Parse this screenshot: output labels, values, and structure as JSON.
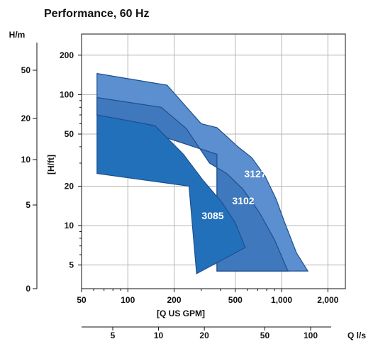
{
  "chart_data": {
    "type": "area",
    "title": "Performance, 60 Hz",
    "x_axis": {
      "label": "[Q US GPM]",
      "scale": "log",
      "range": [
        50,
        2600
      ],
      "tick_labels": [
        "50",
        "100",
        "200",
        "500",
        "1,000",
        "2,000"
      ],
      "tick_values": [
        50,
        100,
        200,
        500,
        1000,
        2000
      ]
    },
    "x2_axis": {
      "label": "Q l/s",
      "scale": "log",
      "tick_labels": [
        "5",
        "10",
        "20",
        "50",
        "100"
      ],
      "tick_values": [
        5,
        10,
        20,
        50,
        100
      ]
    },
    "y_axis": {
      "label": "[H/ft]",
      "scale": "log",
      "range": [
        3.3,
        290
      ],
      "tick_labels": [
        "5",
        "10",
        "20",
        "50",
        "100",
        "200"
      ],
      "tick_values": [
        5,
        10,
        20,
        50,
        100,
        200
      ]
    },
    "y2_axis": {
      "label": "H/m",
      "tick_labels": [
        "0",
        "5",
        "10",
        "20",
        "50"
      ]
    },
    "grid": true,
    "series": [
      {
        "name": "3127",
        "color": "#5b8fcf",
        "points": [
          [
            63,
            145
          ],
          [
            180,
            118
          ],
          [
            300,
            60
          ],
          [
            380,
            56
          ],
          [
            520,
            40
          ],
          [
            640,
            33
          ],
          [
            780,
            24
          ],
          [
            920,
            16
          ],
          [
            1050,
            10.5
          ],
          [
            1250,
            6.2
          ],
          [
            1480,
            4.5
          ],
          [
            380,
            4.5
          ],
          [
            380,
            35
          ],
          [
            63,
            70
          ]
        ]
      },
      {
        "name": "3102",
        "color": "#3f78bd",
        "points": [
          [
            63,
            95
          ],
          [
            165,
            80
          ],
          [
            240,
            55
          ],
          [
            340,
            30
          ],
          [
            440,
            25
          ],
          [
            560,
            19
          ],
          [
            720,
            12.5
          ],
          [
            900,
            7.8
          ],
          [
            1100,
            4.5
          ],
          [
            380,
            4.5
          ],
          [
            380,
            35
          ],
          [
            63,
            70
          ]
        ]
      },
      {
        "name": "3085",
        "color": "#2370ba",
        "points": [
          [
            63,
            70
          ],
          [
            150,
            58
          ],
          [
            230,
            35
          ],
          [
            310,
            22
          ],
          [
            410,
            15
          ],
          [
            500,
            10.5
          ],
          [
            580,
            6.8
          ],
          [
            280,
            4.3
          ],
          [
            250,
            20
          ],
          [
            63,
            25
          ]
        ]
      }
    ]
  }
}
